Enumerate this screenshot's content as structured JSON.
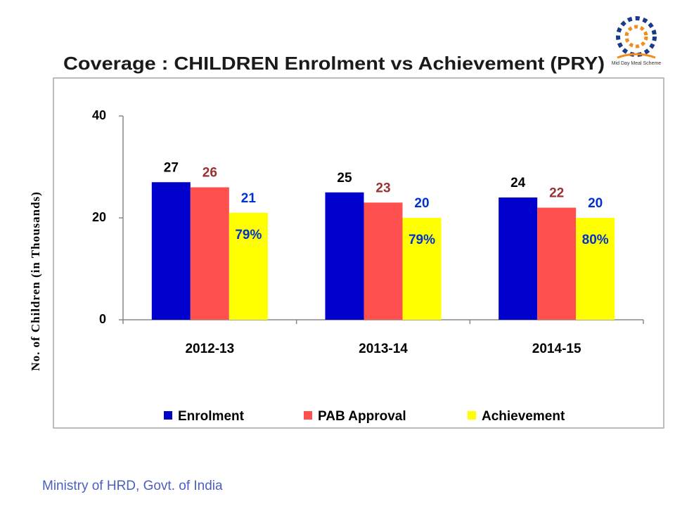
{
  "chart_data": {
    "type": "bar",
    "title": "Coverage : CHILDREN Enrolment vs Achievement (PRY)",
    "y_label": "No. of Children (in Thousands)",
    "categories": [
      "2012-13",
      "2013-14",
      "2014-15"
    ],
    "series": [
      {
        "name": "Enrolment",
        "color": "#0000cc",
        "label_color": "#000000",
        "values": [
          27,
          25,
          24
        ]
      },
      {
        "name": "PAB Approval",
        "color": "#ff5050",
        "label_color": "#993333",
        "values": [
          26,
          23,
          22
        ]
      },
      {
        "name": "Achievement",
        "color": "#ffff00",
        "label_color": "#0033cc",
        "values": [
          21,
          20,
          20
        ]
      }
    ],
    "achievement_percent_labels": [
      "79%",
      "79%",
      "80%"
    ],
    "ylim": [
      0,
      40
    ],
    "yticks": [
      0,
      20,
      40
    ],
    "grid": false,
    "legend": "bottom",
    "footer": "Ministry of HRD, Govt. of India",
    "logo_text": "Mid Day Meal Scheme"
  }
}
